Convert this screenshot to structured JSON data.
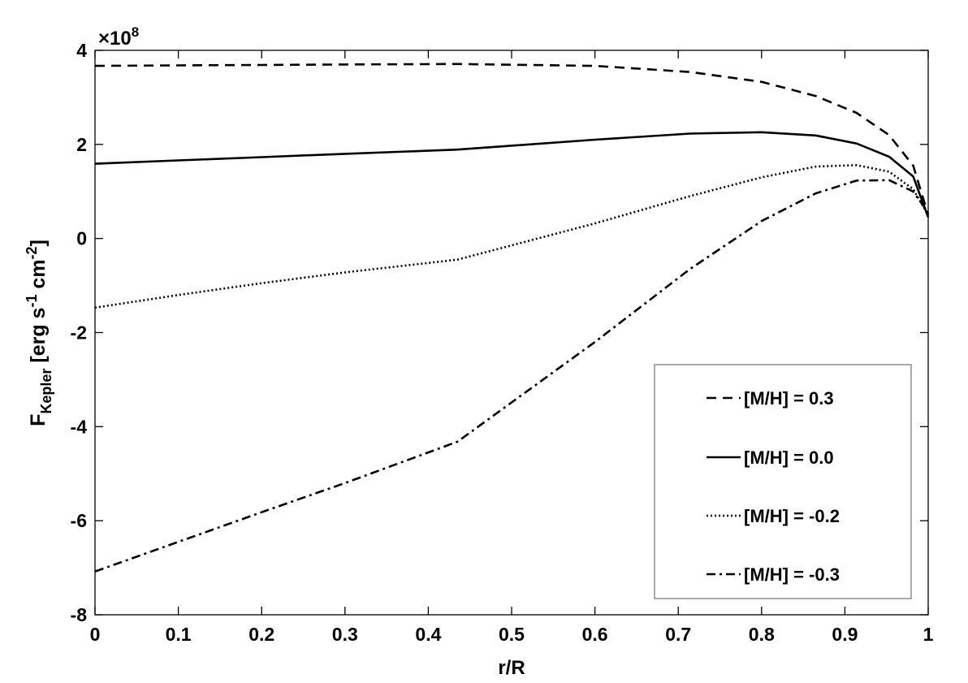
{
  "chart_data": {
    "type": "line",
    "title": "",
    "xlabel": "r/R",
    "ylabel": {
      "main": "F",
      "subscript": "Kepler",
      "bracket_open": "[erg s",
      "sup1": "-1",
      "mid": " cm",
      "sup2": "-2",
      "bracket_close": "]"
    },
    "y_exponent_label": "×10",
    "y_exponent_power": "8",
    "xlim": [
      0,
      1
    ],
    "ylim": [
      -8,
      4
    ],
    "x_ticks": [
      0,
      0.1,
      0.2,
      0.3,
      0.4,
      0.5,
      0.6,
      0.7,
      0.8,
      0.9,
      1
    ],
    "x_tick_labels": [
      "0",
      "0.1",
      "0.2",
      "0.3",
      "0.4",
      "0.5",
      "0.6",
      "0.7",
      "0.8",
      "0.9",
      "1"
    ],
    "y_ticks": [
      -8,
      -6,
      -4,
      -2,
      0,
      2,
      4
    ],
    "y_tick_labels": [
      "-8",
      "-6",
      "-4",
      "-2",
      "0",
      "2",
      "4"
    ],
    "grid": false,
    "legend_position": "bottom-right",
    "y_units_note": "values in units of 1e8 erg s^-1 cm^-2",
    "series": [
      {
        "name": "[M/H] = 0.3",
        "dash": "dashed",
        "x": [
          0,
          0.1,
          0.2,
          0.3,
          0.435,
          0.6,
          0.714,
          0.8,
          0.865,
          0.914,
          0.953,
          0.982,
          1.0
        ],
        "y": [
          3.67,
          3.68,
          3.69,
          3.7,
          3.71,
          3.67,
          3.54,
          3.33,
          3.03,
          2.67,
          2.2,
          1.55,
          0.5
        ]
      },
      {
        "name": "[M/H] = 0.0",
        "dash": "solid",
        "x": [
          0,
          0.1,
          0.2,
          0.3,
          0.435,
          0.6,
          0.714,
          0.8,
          0.865,
          0.914,
          0.953,
          0.982,
          1.0
        ],
        "y": [
          1.59,
          1.66,
          1.73,
          1.8,
          1.89,
          2.1,
          2.23,
          2.26,
          2.19,
          2.02,
          1.74,
          1.32,
          0.45
        ]
      },
      {
        "name": "[M/H] = -0.2",
        "dash": "dotted",
        "x": [
          0,
          0.1,
          0.2,
          0.3,
          0.435,
          0.6,
          0.714,
          0.8,
          0.865,
          0.914,
          0.953,
          0.982,
          1.0
        ],
        "y": [
          -1.47,
          -1.2,
          -0.95,
          -0.72,
          -0.45,
          0.32,
          0.9,
          1.3,
          1.53,
          1.56,
          1.42,
          1.05,
          0.5
        ]
      },
      {
        "name": "[M/H] = -0.3",
        "dash": "dashdot",
        "x": [
          0,
          0.1,
          0.2,
          0.3,
          0.435,
          0.6,
          0.714,
          0.8,
          0.865,
          0.914,
          0.953,
          0.982,
          1.0
        ],
        "y": [
          -7.08,
          -6.45,
          -5.82,
          -5.2,
          -4.32,
          -2.2,
          -0.65,
          0.37,
          0.96,
          1.23,
          1.24,
          1.0,
          0.55
        ]
      }
    ]
  }
}
